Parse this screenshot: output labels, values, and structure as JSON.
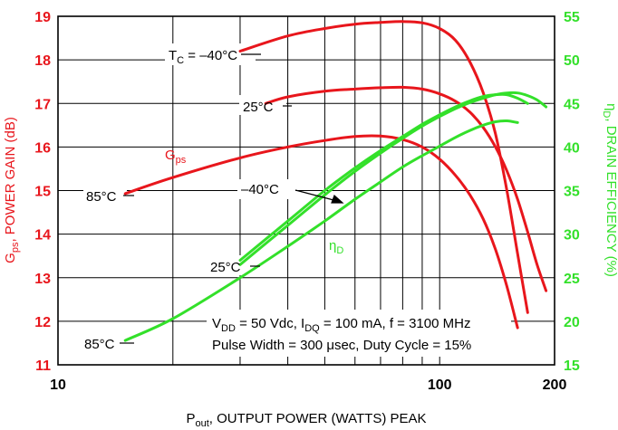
{
  "colors": {
    "gain": "#e8161c",
    "efficiency": "#33e02a",
    "grid": "#000000",
    "axis": "#000000"
  },
  "chart_data": {
    "type": "line",
    "x_scale": "log",
    "xlim": [
      10,
      200
    ],
    "ylim_left": [
      11,
      19
    ],
    "ylim_right": [
      15,
      55
    ],
    "grid": true,
    "x_ticks": [
      {
        "value": 10,
        "label": "10"
      },
      {
        "value": 100,
        "label": "100"
      },
      {
        "value": 200,
        "label": "200"
      }
    ],
    "y_left_ticks": [
      "11",
      "12",
      "13",
      "14",
      "15",
      "16",
      "17",
      "18",
      "19"
    ],
    "y_right_ticks": [
      "15",
      "20",
      "25",
      "30",
      "35",
      "40",
      "45",
      "50",
      "55"
    ],
    "xlabel": {
      "p": "P",
      "sub": "out",
      "rest": ", OUTPUT POWER (WATTS) PEAK"
    },
    "ylabel_left": {
      "g": "G",
      "sub": "ps",
      "rest": ", POWER GAIN (dB)"
    },
    "ylabel_right": {
      "eta": "η",
      "sub": "D",
      "rest": ", DRAIN EFFICIENCY (%)"
    },
    "annotations": {
      "gps": {
        "main": "G",
        "sub": "ps"
      },
      "eta_d": {
        "main": "η",
        "sub": "D"
      },
      "tc_gain": {
        "t": "T",
        "sub": "C",
        "rest": " = –40°C"
      },
      "gain_25": "25°C",
      "gain_85": "85°C",
      "eff_m40": "–40°C",
      "eff_25": "25°C",
      "eff_85": "85°C",
      "conditions_line1": {
        "v": "V",
        "vsub": "DD",
        "a": " = 50 Vdc,  I",
        "isub": "DQ",
        "b": " = 100 mA,  f = 3100 MHz"
      },
      "conditions_line2": "Pulse Width = 300 μsec, Duty Cycle = 15%"
    },
    "series": [
      {
        "axis": "left",
        "x": [
          30,
          40,
          50,
          60,
          70,
          80,
          90,
          100,
          110,
          120,
          130,
          140,
          150,
          160,
          170
        ],
        "y": [
          18.2,
          18.55,
          18.72,
          18.82,
          18.86,
          18.88,
          18.85,
          18.72,
          18.45,
          17.95,
          17.25,
          16.3,
          15.0,
          13.55,
          12.2
        ]
      },
      {
        "axis": "left",
        "x": [
          35,
          40,
          50,
          60,
          70,
          80,
          90,
          100,
          110,
          120,
          130,
          140,
          150,
          160,
          170,
          180,
          190
        ],
        "y": [
          17.0,
          17.15,
          17.28,
          17.33,
          17.36,
          17.37,
          17.33,
          17.22,
          17.05,
          16.8,
          16.45,
          16.0,
          15.45,
          14.8,
          14.05,
          13.3,
          12.7
        ]
      },
      {
        "axis": "left",
        "x": [
          15,
          20,
          30,
          40,
          50,
          60,
          70,
          80,
          90,
          100,
          110,
          120,
          130,
          140,
          150,
          160
        ],
        "y": [
          14.93,
          15.3,
          15.75,
          16.0,
          16.15,
          16.24,
          16.25,
          16.17,
          16.0,
          15.72,
          15.35,
          14.9,
          14.35,
          13.65,
          12.8,
          11.85
        ]
      },
      {
        "axis": "right",
        "x": [
          30,
          40,
          50,
          60,
          70,
          80,
          90,
          100,
          110,
          120,
          130,
          140,
          150,
          160,
          170
        ],
        "y": [
          27.0,
          31.5,
          35.0,
          37.6,
          39.6,
          41.2,
          42.6,
          43.7,
          44.6,
          45.3,
          45.8,
          46.0,
          46.0,
          45.6,
          45.0
        ]
      },
      {
        "axis": "right",
        "x": [
          30,
          40,
          50,
          60,
          70,
          80,
          90,
          100,
          110,
          120,
          130,
          140,
          150,
          160,
          170,
          180,
          190
        ],
        "y": [
          26.5,
          31.0,
          34.5,
          37.2,
          39.3,
          41.0,
          42.4,
          43.5,
          44.4,
          45.1,
          45.6,
          46.0,
          46.2,
          46.2,
          45.9,
          45.4,
          44.6
        ]
      },
      {
        "axis": "right",
        "x": [
          15,
          20,
          30,
          40,
          50,
          60,
          70,
          80,
          90,
          100,
          110,
          120,
          130,
          140,
          150,
          160
        ],
        "y": [
          17.8,
          20.3,
          25.0,
          28.6,
          31.5,
          34.0,
          36.0,
          37.7,
          39.0,
          40.1,
          41.1,
          41.9,
          42.5,
          42.9,
          43.0,
          42.8
        ]
      }
    ]
  }
}
